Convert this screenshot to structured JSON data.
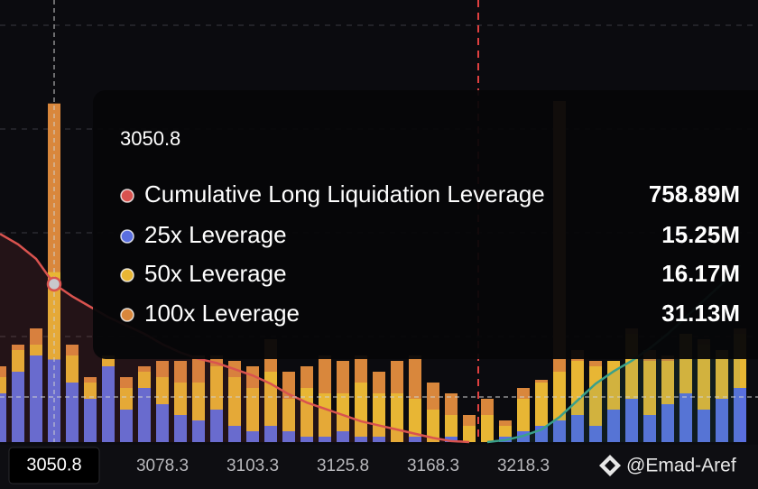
{
  "chart_data": {
    "type": "bar",
    "categories": [
      null,
      null,
      null,
      null,
      null,
      null,
      null,
      null,
      null,
      "3078.3",
      null,
      null,
      null,
      null,
      "3103.3",
      null,
      null,
      null,
      null,
      "3125.8",
      null,
      null,
      null,
      null,
      "3168.3",
      null,
      null,
      null,
      null,
      "3218.3",
      null,
      null,
      null,
      null,
      null,
      null,
      null,
      null,
      null,
      null,
      null,
      null
    ],
    "ylim": [
      0,
      75
    ],
    "y2lim": [
      0,
      1950
    ],
    "series": [
      {
        "name": "Cumulative Long Liquidation Leverage",
        "type": "line",
        "axis": "y2",
        "color": "#d9534f",
        "values": [
          1000,
          950,
          880,
          758.89,
          700,
          650,
          600,
          560,
          520,
          470,
          430,
          400,
          380,
          350,
          320,
          280,
          230,
          190,
          160,
          130,
          100,
          80,
          60,
          40,
          20,
          5,
          0,
          null,
          null,
          null,
          null,
          null,
          null,
          null,
          null,
          null,
          null,
          null,
          null,
          null,
          null,
          null
        ],
        "value_labels": [
          null,
          null,
          null,
          "758.89M",
          null,
          null,
          null,
          null,
          null,
          null,
          null,
          null,
          null,
          null,
          null,
          null,
          null,
          null,
          null,
          null,
          null,
          null,
          null,
          null,
          null,
          null,
          null,
          null,
          null,
          null,
          null,
          null,
          null,
          null,
          null,
          null,
          null,
          null,
          null,
          null,
          null,
          null
        ]
      },
      {
        "name": "25x Leverage",
        "color": "#5a6fe0",
        "values": [
          9,
          13,
          16,
          15.25,
          11,
          8,
          14,
          6,
          10,
          7,
          5,
          4,
          6,
          3,
          2,
          3,
          2,
          1,
          1,
          2,
          1,
          1,
          0,
          1,
          0,
          1,
          0,
          0,
          1,
          2,
          3,
          4,
          5,
          3,
          6,
          8,
          5,
          7,
          9,
          6,
          8,
          10
        ],
        "value_labels": [
          null,
          null,
          null,
          "15.25M",
          null,
          null,
          null,
          null,
          null,
          null,
          null,
          null,
          null,
          null,
          null,
          null,
          null,
          null,
          null,
          null,
          null,
          null,
          null,
          null,
          null,
          null,
          null,
          null,
          null,
          null,
          null,
          null,
          null,
          null,
          null,
          null,
          null,
          null,
          null,
          null,
          null,
          null
        ]
      },
      {
        "name": "50x Leverage",
        "color": "#e8b634",
        "values": [
          3,
          4,
          2,
          16.17,
          5,
          3,
          2,
          4,
          3,
          5,
          6,
          7,
          8,
          9,
          8,
          10,
          6,
          9,
          8,
          7,
          10,
          8,
          9,
          7,
          6,
          4,
          3,
          5,
          2,
          6,
          8,
          9,
          10,
          11,
          9,
          12,
          10,
          8,
          11,
          12,
          9,
          10
        ],
        "value_labels": [
          null,
          null,
          null,
          "16.17M",
          null,
          null,
          null,
          null,
          null,
          null,
          null,
          null,
          null,
          null,
          null,
          null,
          null,
          null,
          null,
          null,
          null,
          null,
          null,
          null,
          null,
          null,
          null,
          null,
          null,
          null,
          null,
          null,
          null,
          null,
          null,
          null,
          null,
          null,
          null,
          null,
          null,
          null
        ]
      },
      {
        "name": "100x Leverage",
        "color": "#d9873c",
        "values": [
          2,
          1,
          3,
          31.13,
          2,
          1,
          0,
          2,
          1,
          3,
          4,
          5,
          2,
          3,
          4,
          6,
          5,
          4,
          7,
          6,
          5,
          4,
          6,
          8,
          5,
          4,
          2,
          3,
          1,
          2,
          0.5,
          50,
          2,
          1,
          0,
          1,
          2,
          1,
          0,
          1,
          0,
          1
        ],
        "value_labels": [
          null,
          null,
          null,
          "31.13M",
          null,
          null,
          null,
          null,
          null,
          null,
          null,
          null,
          null,
          null,
          null,
          null,
          null,
          null,
          null,
          null,
          null,
          null,
          null,
          null,
          null,
          null,
          null,
          null,
          null,
          null,
          null,
          null,
          null,
          null,
          null,
          null,
          null,
          null,
          null,
          null,
          null,
          null
        ]
      },
      {
        "type": "line",
        "axis": "y2",
        "color": "#3aa08a",
        "values": [
          null,
          null,
          null,
          null,
          null,
          null,
          null,
          null,
          null,
          null,
          null,
          null,
          null,
          null,
          null,
          null,
          null,
          null,
          null,
          null,
          null,
          null,
          null,
          null,
          null,
          null,
          null,
          0,
          10,
          30,
          60,
          120,
          200,
          280,
          340,
          390,
          450,
          520,
          600,
          680,
          760,
          850
        ]
      }
    ],
    "tooltip": {
      "title": "3050.8"
    },
    "watermark": "@Emad-Aref"
  }
}
